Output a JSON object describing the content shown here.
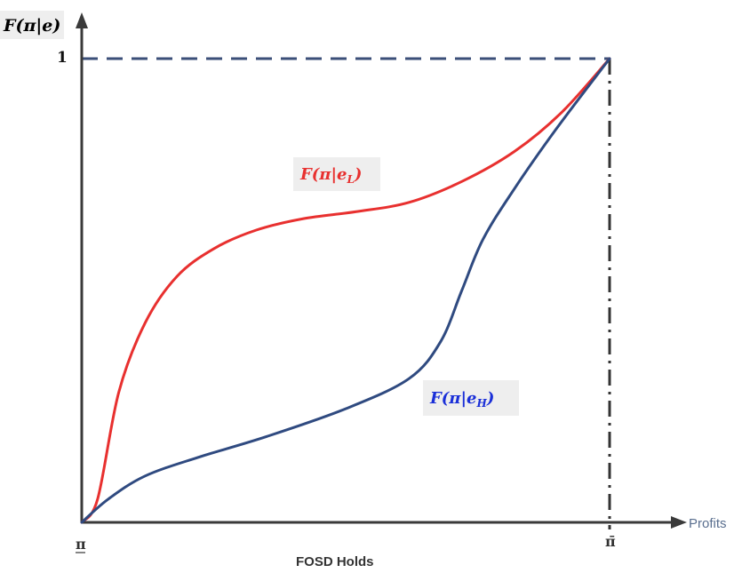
{
  "chart_data": {
    "type": "line",
    "title": "",
    "ylabel": "F(π|e)",
    "xlabel": "Profits",
    "caption": "FOSD Holds",
    "y_ticks": [
      "1"
    ],
    "x_ticks": [
      "π",
      "π̄"
    ],
    "xlim": [
      0,
      1
    ],
    "ylim": [
      0,
      1
    ],
    "reference_lines": [
      {
        "kind": "horizontal",
        "at": 1,
        "style": "dashed"
      },
      {
        "kind": "vertical",
        "at": 1,
        "style": "dash-dot"
      }
    ],
    "series": [
      {
        "name": "F(π|e_L)",
        "label_main": "F(π|e",
        "label_sub": "L",
        "label_close": ")",
        "color": "#e8302f",
        "x": [
          0,
          0.03,
          0.07,
          0.12,
          0.18,
          0.25,
          0.33,
          0.42,
          0.52,
          0.62,
          0.72,
          0.82,
          0.91,
          1
        ],
        "y": [
          0,
          0.05,
          0.28,
          0.43,
          0.53,
          0.59,
          0.63,
          0.655,
          0.67,
          0.69,
          0.735,
          0.8,
          0.885,
          1
        ]
      },
      {
        "name": "F(π|e_H)",
        "label_main": "F(π|e",
        "label_sub": "H",
        "label_close": ")",
        "color": "#2f4a80",
        "x": [
          0,
          0.05,
          0.12,
          0.22,
          0.35,
          0.5,
          0.62,
          0.68,
          0.72,
          0.76,
          0.82,
          0.9,
          1
        ],
        "y": [
          0,
          0.05,
          0.1,
          0.14,
          0.185,
          0.245,
          0.31,
          0.39,
          0.5,
          0.61,
          0.72,
          0.85,
          1
        ]
      }
    ]
  }
}
